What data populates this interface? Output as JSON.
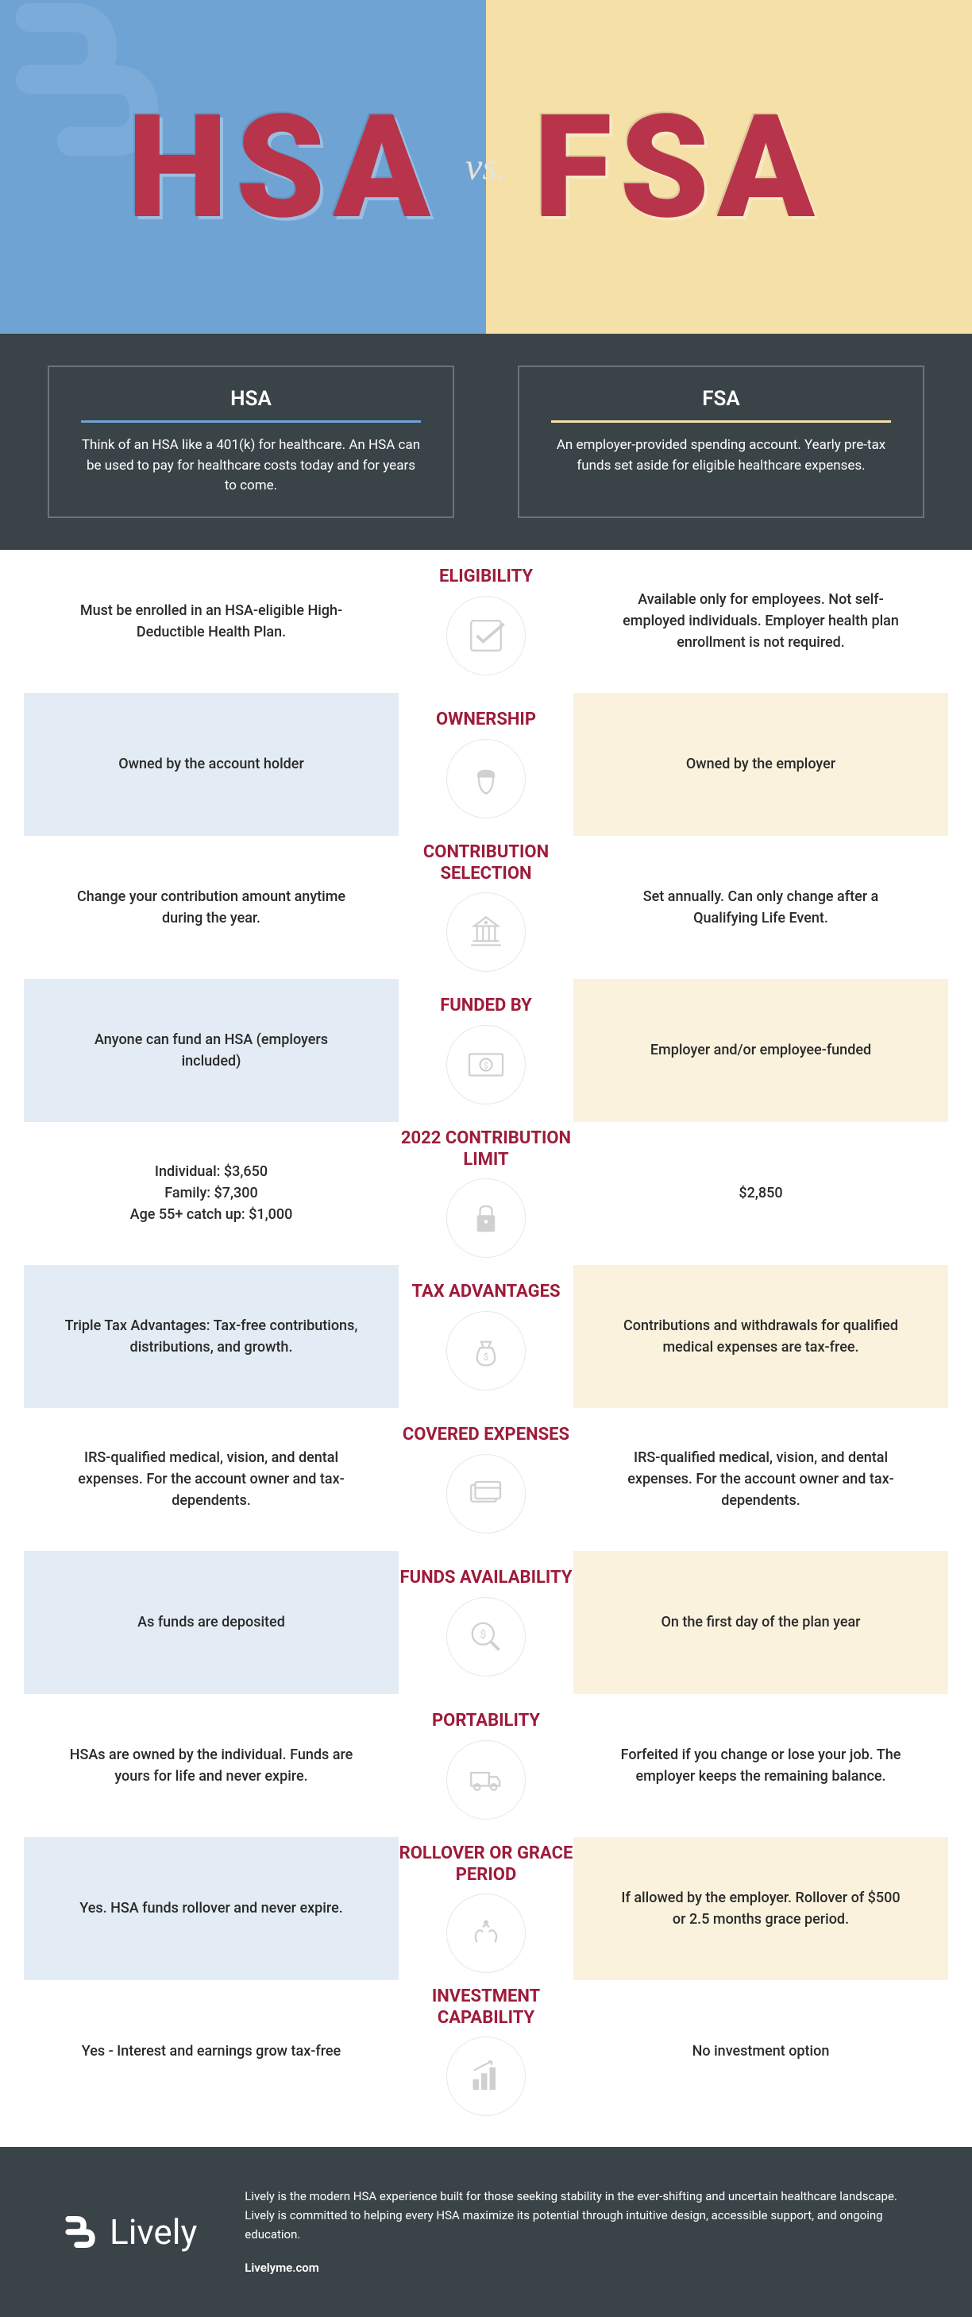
{
  "hero": {
    "left_title": "HSA",
    "right_title": "FSA",
    "vs": "vs."
  },
  "intro": {
    "hsa": {
      "title": "HSA",
      "desc": "Think of an HSA like a 401(k) for healthcare. An HSA can be used to pay for healthcare costs today and for years to come."
    },
    "fsa": {
      "title": "FSA",
      "desc": "An employer-provided spending account. Yearly pre-tax funds set aside for eligible healthcare expenses."
    }
  },
  "rows": [
    {
      "label": "ELIGIBILITY",
      "hsa": "Must be enrolled in an HSA-eligible High-Deductible Health Plan.",
      "fsa": "Available only for employees. Not self-employed individuals. Employer health plan enrollment is not required.",
      "icon": "check"
    },
    {
      "label": "OWNERSHIP",
      "hsa": "Owned by the account holder",
      "fsa": "Owned by the employer",
      "icon": "acorn"
    },
    {
      "label": "CONTRIBUTION SELECTION",
      "hsa": "Change your contribution amount anytime during the year.",
      "fsa": "Set annually. Can only change after a Qualifying Life Event.",
      "icon": "bank"
    },
    {
      "label": "FUNDED BY",
      "hsa": "Anyone can fund an HSA (employers included)",
      "fsa": "Employer and/or employee-funded",
      "icon": "money"
    },
    {
      "label": "2022 CONTRIBUTION LIMIT",
      "hsa": "Individual: $3,650\nFamily: $7,300\nAge 55+ catch up: $1,000",
      "fsa": "$2,850",
      "icon": "lock"
    },
    {
      "label": "TAX ADVANTAGES",
      "hsa": "Triple Tax Advantages: Tax-free contributions, distributions, and growth.",
      "fsa": "Contributions and withdrawals for qualified medical expenses are tax-free.",
      "icon": "bag"
    },
    {
      "label": "COVERED EXPENSES",
      "hsa": "IRS-qualified medical, vision, and dental expenses. For the account owner and tax-dependents.",
      "fsa": "IRS-qualified medical, vision, and dental expenses. For the account owner and tax-dependents.",
      "icon": "card"
    },
    {
      "label": "FUNDS AVAILABILITY",
      "hsa": "As funds are deposited",
      "fsa": "On the first day of the plan year",
      "icon": "magnify"
    },
    {
      "label": "PORTABILITY",
      "hsa": "HSAs are owned by the individual. Funds are yours for life and never expire.",
      "fsa": "Forfeited if you change or lose your job. The employer keeps the remaining balance.",
      "icon": "truck"
    },
    {
      "label": "ROLLOVER OR GRACE PERIOD",
      "hsa": "Yes. HSA funds rollover and never expire.",
      "fsa": "If allowed by the employer. Rollover of $500 or 2.5 months grace period.",
      "icon": "hands"
    },
    {
      "label": "INVESTMENT CAPABILITY",
      "hsa": "Yes - Interest and earnings grow tax-free",
      "fsa": "No investment option",
      "icon": "chart"
    }
  ],
  "footer": {
    "brand": "Lively",
    "desc": "Lively is the modern HSA experience built for those seeking stability in the ever-shifting and uncertain healthcare landscape. Lively is committed to helping every HSA maximize its potential through intuitive design, accessible support, and ongoing education.",
    "url": "Livelyme.com"
  },
  "colors": {
    "hsa_bg": "#6fa3d4",
    "fsa_bg": "#f5e0a8",
    "accent": "#9e1b3a",
    "dark": "#3a4348"
  }
}
